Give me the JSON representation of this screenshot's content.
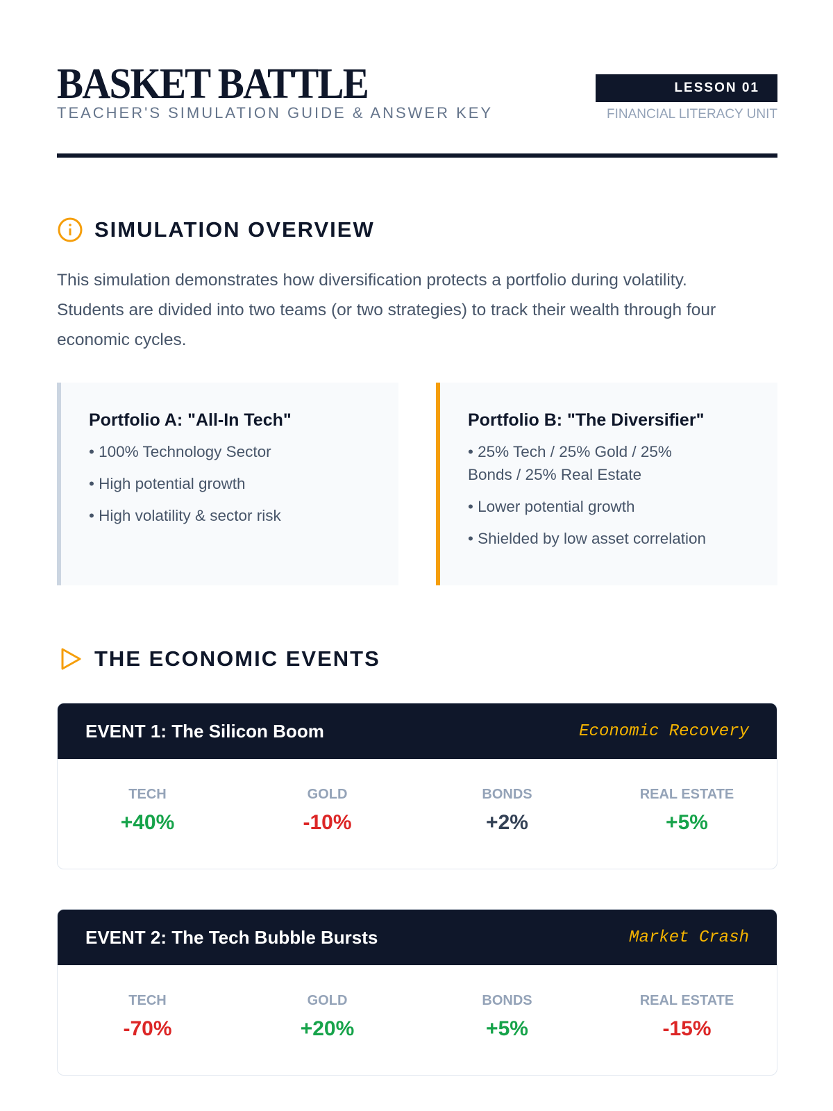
{
  "header": {
    "title": "BASKET BATTLE",
    "subtitle": "TEACHER'S SIMULATION GUIDE & ANSWER KEY",
    "badge": "LESSON 01",
    "unit": "FINANCIAL LITERACY UNIT"
  },
  "overview": {
    "heading": "SIMULATION OVERVIEW",
    "icon": "info-icon",
    "text": "This simulation demonstrates how diversification protects a portfolio during volatility. Students are divided into two teams (or two strategies) to track their wealth through four economic cycles."
  },
  "portfolios": [
    {
      "title": "Portfolio A: \"All-In Tech\"",
      "items": [
        "100% Technology Sector",
        "High potential growth",
        "High volatility & sector risk"
      ]
    },
    {
      "title": "Portfolio B: \"The Diversifier\"",
      "items": [
        "25% Tech / 25% Gold / 25% Bonds / 25% Real Estate",
        "Lower potential growth",
        "Shielded by low asset correlation"
      ]
    }
  ],
  "events_section": {
    "heading": "THE ECONOMIC EVENTS",
    "icon": "play-icon"
  },
  "events": [
    {
      "title": "EVENT 1: The Silicon Boom",
      "tag": "Economic Recovery",
      "assets": [
        {
          "label": "TECH",
          "value": "+40%",
          "tone": "pos"
        },
        {
          "label": "GOLD",
          "value": "-10%",
          "tone": "neg"
        },
        {
          "label": "BONDS",
          "value": "+2%",
          "tone": "neu"
        },
        {
          "label": "REAL ESTATE",
          "value": "+5%",
          "tone": "pos"
        }
      ]
    },
    {
      "title": "EVENT 2: The Tech Bubble Bursts",
      "tag": "Market Crash",
      "assets": [
        {
          "label": "TECH",
          "value": "-70%",
          "tone": "neg"
        },
        {
          "label": "GOLD",
          "value": "+20%",
          "tone": "pos"
        },
        {
          "label": "BONDS",
          "value": "+5%",
          "tone": "pos"
        },
        {
          "label": "REAL ESTATE",
          "value": "-15%",
          "tone": "neg"
        }
      ]
    }
  ],
  "colors": {
    "navy": "#0f172a",
    "accent": "#f59e0b",
    "positive": "#16a34a",
    "negative": "#dc2626"
  }
}
